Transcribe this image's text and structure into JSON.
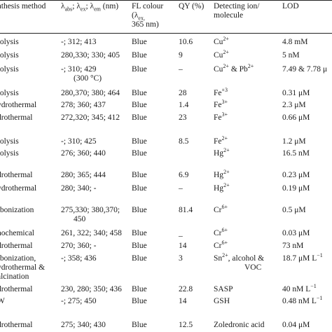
{
  "header": {
    "method": "nthesis method",
    "lambda_prefix": "λ",
    "lambda_sub1": "abs",
    "lambda_sep1": "; λ",
    "lambda_sub2": "ex",
    "lambda_sep2": "; λ",
    "lambda_sub3": "em",
    "lambda_unit": " (nm)",
    "fl_line1": "FL colour",
    "fl_line2_prefix": "(λ",
    "fl_line2_sub": "ex,",
    "fl_line3": "365 nm)",
    "qy": "QY (%)",
    "detect_line1": "Detecting ion/",
    "detect_line2": "molecule",
    "lod": "LOD"
  },
  "rows": [
    {
      "method": [
        "rolysis"
      ],
      "wavelengths": [
        "-; 312; 413"
      ],
      "fl": "Blue",
      "qy": "10.6",
      "det_base": "Cu",
      "det_sup": "2+",
      "det_extra": "",
      "lod": "4.8 mM"
    },
    {
      "method": [
        "rolysis"
      ],
      "wavelengths": [
        "280,330; 330; 405"
      ],
      "fl": "Blue",
      "qy": "9",
      "det_base": "Cu",
      "det_sup": "2+",
      "det_extra": "",
      "lod": "5 nM"
    },
    {
      "method": [
        "rolysis"
      ],
      "wavelengths": [
        "-; 310; 429",
        "(300 °C)"
      ],
      "fl": "Blue",
      "qy": "–",
      "det_base": "Cu",
      "det_sup": "2+",
      "det_extra": " & Pb",
      "det_sup2": "2+",
      "lod": "7.49 & 7.78 μ"
    },
    {
      "method": [
        "rolysis"
      ],
      "wavelengths": [
        "280,370; 380; 464"
      ],
      "fl": "Blue",
      "qy": "28",
      "det_base": "Fe",
      "det_sup": "+3",
      "det_extra": "",
      "lod": "0.31 μM"
    },
    {
      "method": [
        "ydrothermal"
      ],
      "wavelengths": [
        "278; 360; 437"
      ],
      "fl": "Blue",
      "qy": "1.4",
      "det_base": "Fe",
      "det_sup": "3+",
      "det_extra": "",
      "lod": "2.3 μM"
    },
    {
      "method": [
        "drothermal"
      ],
      "wavelengths": [
        "272,320; 345; 412"
      ],
      "fl": "Blue",
      "qy": "23",
      "det_base": "Fe",
      "det_sup": "3+",
      "det_extra": "",
      "lod": "0.66 μM"
    },
    {
      "method": [
        "rolysis"
      ],
      "wavelengths": [
        "-; 310; 425"
      ],
      "fl": "Blue",
      "qy": "8.5",
      "det_base": "Fe",
      "det_sup": "2+",
      "det_extra": "",
      "lod": "1.2 μM"
    },
    {
      "method": [
        "rolysis"
      ],
      "wavelengths": [
        "276; 360; 440"
      ],
      "fl": "Blue",
      "qy": "",
      "det_base": "Hg",
      "det_sup": "2+",
      "det_extra": "",
      "lod": "16.5 nM"
    },
    {
      "method": [
        "drothermal"
      ],
      "wavelengths": [
        "280; 365; 444"
      ],
      "fl": "Blue",
      "qy": "6.9",
      "det_base": "Hg",
      "det_sup": "2+",
      "det_extra": "",
      "lod": "0.23 μM"
    },
    {
      "method": [
        "ydrothermal"
      ],
      "wavelengths": [
        "280; 340; -"
      ],
      "fl": "Blue",
      "qy": "–",
      "det_base": "Hg",
      "det_sup": "2+",
      "det_extra": "",
      "lod": "0.19 μM"
    },
    {
      "method": [
        "rbonization"
      ],
      "wavelengths": [
        "275,330; 380,370;",
        "450"
      ],
      "fl": "Blue",
      "qy": "81.4",
      "det_base": "Cr",
      "det_sup": "6+",
      "det_extra": "",
      "lod": "0.5 μM"
    },
    {
      "method": [
        "nochemical"
      ],
      "wavelengths": [
        "261, 322; 340; 458"
      ],
      "fl": "Blue",
      "qy": "_",
      "det_base": "Cr",
      "det_sup": "6+",
      "det_extra": "",
      "lod": "0.03 μM"
    },
    {
      "method": [
        "drothermal"
      ],
      "wavelengths": [
        "270; 360; -"
      ],
      "fl": "Blue",
      "qy": "14",
      "det_base": "Cr",
      "det_sup": "6+",
      "det_extra": "",
      "lod": "73 nM"
    },
    {
      "method": [
        "rbonization,",
        "ydrothermal &",
        "alcination"
      ],
      "wavelengths": [
        "-; 358; 436"
      ],
      "fl": "Blue",
      "qy": "3",
      "det_base": "Sn",
      "det_sup": "2+",
      "det_extra": ", alcohol &",
      "det_line2": "VOC",
      "lod": "18.7 μM L",
      "lod_sup": "−1"
    },
    {
      "method": [
        "drothermal"
      ],
      "wavelengths": [
        "230, 280; 350; 436"
      ],
      "fl": "Blue",
      "qy": "22.8",
      "det_base": "SASP",
      "det_sup": "",
      "det_extra": "",
      "lod": "40 nM L",
      "lod_sup": "−1"
    },
    {
      "method": [
        "W"
      ],
      "wavelengths": [
        "-; 275; 450"
      ],
      "fl": "Blue",
      "qy": "14",
      "det_base": "GSH",
      "det_sup": "",
      "det_extra": "",
      "lod": "0.48 nM L",
      "lod_sup": "−1"
    },
    {
      "method": [
        "drothermal"
      ],
      "wavelengths": [
        "275; 340; 430"
      ],
      "fl": "Blue",
      "qy": "12.5",
      "det_base": "Zoledronic acid",
      "det_sup": "",
      "det_extra": "",
      "lod": "0.04 μM"
    }
  ]
}
